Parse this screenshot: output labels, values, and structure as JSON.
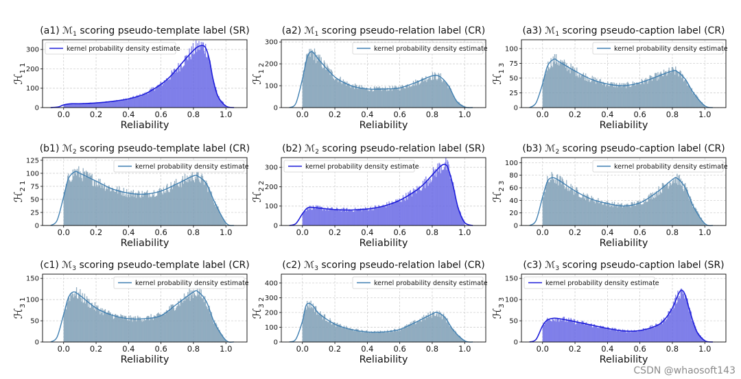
{
  "watermark": "CSDN @whaosoft143",
  "colors": {
    "sr_bar": "#6a6ae6",
    "sr_line": "#1c1cd9",
    "cr_bar": "#7f9fb6",
    "cr_line": "#3f7fb1",
    "grid": "#c8c8c8"
  },
  "chart_data": [
    {
      "id": "a1",
      "type": "histogram",
      "title": "(a1) ℳ1 scoring pseudo-template label (SR)",
      "title_prefix": "(a1) ",
      "model_sym": "ℳ",
      "model_sub": "1",
      "title_suffix": " scoring pseudo-template label (SR)",
      "mode": "SR",
      "ylabel_sym": "ℋ",
      "ylabel_sub": "1 1",
      "xlabel": "Reliability",
      "legend": "kernel probability density estimate",
      "legend_loc": "upper-left",
      "grid": true,
      "xlim": [
        -0.13,
        1.13
      ],
      "ylim": [
        0,
        350
      ],
      "xticks": [
        0.0,
        0.2,
        0.4,
        0.6,
        0.8,
        1.0
      ],
      "xtick_labels": [
        "0.0",
        "0.2",
        "0.4",
        "0.6",
        "0.8",
        "1.0"
      ],
      "yticks": [
        0,
        100,
        200,
        300
      ],
      "ytick_labels": [
        "0",
        "100",
        "200",
        "300"
      ],
      "density": {
        "x": [
          -0.08,
          -0.03,
          0.0,
          0.05,
          0.1,
          0.2,
          0.3,
          0.4,
          0.5,
          0.6,
          0.65,
          0.7,
          0.75,
          0.8,
          0.83,
          0.86,
          0.88,
          0.9,
          0.92,
          0.95,
          1.0,
          1.05
        ],
        "y": [
          0,
          4,
          14,
          20,
          20,
          24,
          32,
          45,
          70,
          120,
          155,
          200,
          250,
          295,
          315,
          320,
          300,
          240,
          150,
          60,
          8,
          0
        ]
      }
    },
    {
      "id": "a2",
      "type": "histogram",
      "title": "(a2) ℳ1 scoring pseudo-relation label (CR)",
      "title_prefix": "(a2) ",
      "model_sym": "ℳ",
      "model_sub": "1",
      "title_suffix": " scoring pseudo-relation label (CR)",
      "mode": "CR",
      "ylabel_sym": "ℋ",
      "ylabel_sub": "1 2",
      "xlabel": "Reliability",
      "legend": "kernel probability density estimate",
      "legend_loc": "upper-right",
      "grid": true,
      "xlim": [
        -0.13,
        1.13
      ],
      "ylim": [
        0,
        310
      ],
      "xticks": [
        0.0,
        0.2,
        0.4,
        0.6,
        0.8,
        1.0
      ],
      "xtick_labels": [
        "0.0",
        "0.2",
        "0.4",
        "0.6",
        "0.8",
        "1.0"
      ],
      "yticks": [
        0,
        100,
        200,
        300
      ],
      "ytick_labels": [
        "0",
        "100",
        "200",
        "300"
      ],
      "density": {
        "x": [
          -0.08,
          -0.04,
          0.0,
          0.03,
          0.06,
          0.1,
          0.2,
          0.3,
          0.4,
          0.5,
          0.6,
          0.7,
          0.8,
          0.85,
          0.9,
          0.95,
          1.0,
          1.05
        ],
        "y": [
          0,
          20,
          130,
          230,
          255,
          220,
          140,
          100,
          85,
          85,
          90,
          115,
          145,
          140,
          100,
          30,
          3,
          0
        ]
      }
    },
    {
      "id": "a3",
      "type": "histogram",
      "title": "(a3) ℳ1 scoring pseudo-caption label (CR)",
      "title_prefix": "(a3) ",
      "model_sym": "ℳ",
      "model_sub": "1",
      "title_suffix": " scoring pseudo-caption label (CR)",
      "mode": "CR",
      "ylabel_sym": "ℋ",
      "ylabel_sub": "1 3",
      "xlabel": "Reliability",
      "legend": "kernel probability density estimate",
      "legend_loc": "upper-right",
      "grid": true,
      "xlim": [
        -0.13,
        1.13
      ],
      "ylim": [
        0,
        115
      ],
      "xticks": [
        0.0,
        0.2,
        0.4,
        0.6,
        0.8,
        1.0
      ],
      "xtick_labels": [
        "0.0",
        "0.2",
        "0.4",
        "0.6",
        "0.8",
        "1.0"
      ],
      "yticks": [
        0,
        25,
        50,
        75,
        100
      ],
      "ytick_labels": [
        "0",
        "25",
        "50",
        "75",
        "100"
      ],
      "density": {
        "x": [
          -0.08,
          -0.04,
          0.0,
          0.03,
          0.07,
          0.1,
          0.2,
          0.3,
          0.4,
          0.5,
          0.6,
          0.7,
          0.8,
          0.83,
          0.88,
          0.93,
          1.0,
          1.05
        ],
        "y": [
          0,
          8,
          40,
          70,
          82,
          78,
          62,
          48,
          40,
          37,
          42,
          52,
          62,
          61,
          48,
          25,
          3,
          0
        ]
      }
    },
    {
      "id": "b1",
      "type": "histogram",
      "title": "(b1) ℳ2 scoring pseudo-template label (CR)",
      "title_prefix": "(b1) ",
      "model_sym": "ℳ",
      "model_sub": "2",
      "title_suffix": " scoring pseudo-template label (CR)",
      "mode": "CR",
      "ylabel_sym": "ℋ",
      "ylabel_sub": "2 1",
      "xlabel": "Reliability",
      "legend": "kernel probability density estimate",
      "legend_loc": "upper-right",
      "grid": true,
      "xlim": [
        -0.13,
        1.13
      ],
      "ylim": [
        0,
        130
      ],
      "xticks": [
        0.0,
        0.2,
        0.4,
        0.6,
        0.8,
        1.0
      ],
      "xtick_labels": [
        "0.0",
        "0.2",
        "0.4",
        "0.6",
        "0.8",
        "1.0"
      ],
      "yticks": [
        0,
        25,
        50,
        75,
        100,
        125
      ],
      "ytick_labels": [
        "0",
        "25",
        "50",
        "75",
        "100",
        "125"
      ],
      "density": {
        "x": [
          -0.08,
          -0.04,
          0.0,
          0.03,
          0.07,
          0.1,
          0.2,
          0.3,
          0.4,
          0.5,
          0.6,
          0.7,
          0.8,
          0.83,
          0.88,
          0.93,
          1.0,
          1.05
        ],
        "y": [
          0,
          10,
          55,
          90,
          103,
          100,
          85,
          70,
          62,
          60,
          66,
          80,
          95,
          94,
          80,
          45,
          5,
          0
        ]
      }
    },
    {
      "id": "b2",
      "type": "histogram",
      "title": "(b2) ℳ2 scoring pseudo-relation label (SR)",
      "title_prefix": "(b2) ",
      "model_sym": "ℳ",
      "model_sub": "2",
      "title_suffix": " scoring pseudo-relation label (SR)",
      "mode": "SR",
      "ylabel_sym": "ℋ",
      "ylabel_sub": "2 2",
      "xlabel": "Reliability",
      "legend": "kernel probability density estimate",
      "legend_loc": "upper-left",
      "grid": true,
      "xlim": [
        -0.13,
        1.13
      ],
      "ylim": [
        0,
        350
      ],
      "xticks": [
        0.0,
        0.2,
        0.4,
        0.6,
        0.8,
        1.0
      ],
      "xtick_labels": [
        "0.0",
        "0.2",
        "0.4",
        "0.6",
        "0.8",
        "1.0"
      ],
      "yticks": [
        0,
        100,
        200,
        300
      ],
      "ytick_labels": [
        "0",
        "100",
        "200",
        "300"
      ],
      "density": {
        "x": [
          -0.08,
          -0.04,
          0.0,
          0.03,
          0.06,
          0.1,
          0.2,
          0.3,
          0.4,
          0.5,
          0.6,
          0.7,
          0.75,
          0.8,
          0.85,
          0.88,
          0.9,
          0.93,
          0.96,
          1.0,
          1.05
        ],
        "y": [
          0,
          10,
          60,
          90,
          93,
          90,
          82,
          80,
          85,
          100,
          130,
          180,
          215,
          260,
          305,
          315,
          290,
          200,
          90,
          15,
          0
        ]
      }
    },
    {
      "id": "b3",
      "type": "histogram",
      "title": "(b3) ℳ2 scoring pseudo-caption label (CR)",
      "title_prefix": "(b3) ",
      "model_sym": "ℳ",
      "model_sub": "2",
      "title_suffix": " scoring pseudo-caption label (CR)",
      "mode": "CR",
      "ylabel_sym": "ℋ",
      "ylabel_sub": "2 3",
      "xlabel": "Reliability",
      "legend": "kernel probability density estimate",
      "legend_loc": "upper-right",
      "grid": true,
      "xlim": [
        -0.13,
        1.13
      ],
      "ylim": [
        0,
        108
      ],
      "xticks": [
        0.0,
        0.2,
        0.4,
        0.6,
        0.8,
        1.0
      ],
      "xtick_labels": [
        "0.0",
        "0.2",
        "0.4",
        "0.6",
        "0.8",
        "1.0"
      ],
      "yticks": [
        0,
        20,
        40,
        60,
        80,
        100
      ],
      "ytick_labels": [
        "0",
        "20",
        "40",
        "60",
        "80",
        "100"
      ],
      "density": {
        "x": [
          -0.08,
          -0.04,
          0.0,
          0.03,
          0.06,
          0.1,
          0.2,
          0.3,
          0.4,
          0.5,
          0.6,
          0.7,
          0.8,
          0.83,
          0.88,
          0.93,
          1.0,
          1.05
        ],
        "y": [
          0,
          8,
          45,
          70,
          76,
          72,
          55,
          42,
          35,
          31,
          36,
          52,
          73,
          75,
          60,
          30,
          3,
          0
        ]
      }
    },
    {
      "id": "c1",
      "type": "histogram",
      "title": "(c1) ℳ3 scoring pseudo-template label (CR)",
      "title_prefix": "(c1) ",
      "model_sym": "ℳ",
      "model_sub": "3",
      "title_suffix": " scoring pseudo-template label (CR)",
      "mode": "CR",
      "ylabel_sym": "ℋ",
      "ylabel_sub": "3 1",
      "xlabel": "Reliability",
      "legend": "kernel probability density estimate",
      "legend_loc": "upper-right",
      "grid": true,
      "xlim": [
        -0.13,
        1.13
      ],
      "ylim": [
        0,
        160
      ],
      "xticks": [
        0.0,
        0.2,
        0.4,
        0.6,
        0.8,
        1.0
      ],
      "xtick_labels": [
        "0.0",
        "0.2",
        "0.4",
        "0.6",
        "0.8",
        "1.0"
      ],
      "yticks": [
        0,
        50,
        100,
        150
      ],
      "ytick_labels": [
        "0",
        "50",
        "100",
        "150"
      ],
      "density": {
        "x": [
          -0.08,
          -0.04,
          0.0,
          0.03,
          0.06,
          0.1,
          0.2,
          0.3,
          0.4,
          0.5,
          0.6,
          0.7,
          0.8,
          0.83,
          0.88,
          0.93,
          1.0,
          1.05
        ],
        "y": [
          0,
          12,
          65,
          105,
          118,
          110,
          80,
          63,
          55,
          55,
          62,
          90,
          118,
          118,
          95,
          45,
          4,
          0
        ]
      }
    },
    {
      "id": "c2",
      "type": "histogram",
      "title": "(c2) ℳ3 scoring pseudo-relation label (CR)",
      "title_prefix": "(c2) ",
      "model_sym": "ℳ",
      "model_sub": "3",
      "title_suffix": " scoring pseudo-relation label (CR)",
      "mode": "CR",
      "ylabel_sym": "ℋ",
      "ylabel_sub": "3 2",
      "xlabel": "Reliability",
      "legend": "kernel probability density estimate",
      "legend_loc": "upper-right",
      "grid": true,
      "xlim": [
        -0.13,
        1.13
      ],
      "ylim": [
        0,
        460
      ],
      "xticks": [
        0.0,
        0.2,
        0.4,
        0.6,
        0.8,
        1.0
      ],
      "xtick_labels": [
        "0.0",
        "0.2",
        "0.4",
        "0.6",
        "0.8",
        "1.0"
      ],
      "yticks": [
        0,
        100,
        200,
        300,
        400
      ],
      "ytick_labels": [
        "0",
        "100",
        "200",
        "300",
        "400"
      ],
      "density": {
        "x": [
          -0.08,
          -0.04,
          0.0,
          0.02,
          0.04,
          0.07,
          0.1,
          0.2,
          0.3,
          0.4,
          0.5,
          0.6,
          0.7,
          0.8,
          0.83,
          0.88,
          0.93,
          1.0,
          1.05
        ],
        "y": [
          0,
          20,
          140,
          240,
          262,
          240,
          195,
          120,
          85,
          68,
          68,
          85,
          135,
          190,
          200,
          165,
          80,
          8,
          0
        ]
      }
    },
    {
      "id": "c3",
      "type": "histogram",
      "title": "(c3) ℳ3 scoring pseudo-caption label (SR)",
      "title_prefix": "(c3) ",
      "model_sym": "ℳ",
      "model_sub": "3",
      "title_suffix": " scoring pseudo-caption label (SR)",
      "mode": "SR",
      "ylabel_sym": "ℋ",
      "ylabel_sub": "3 3",
      "xlabel": "Reliability",
      "legend": "kernel probability density estimate",
      "legend_loc": "upper-left",
      "grid": true,
      "xlim": [
        -0.13,
        1.13
      ],
      "ylim": [
        0,
        160
      ],
      "xticks": [
        0.0,
        0.2,
        0.4,
        0.6,
        0.8,
        1.0
      ],
      "xtick_labels": [
        "0.0",
        "0.2",
        "0.4",
        "0.6",
        "0.8",
        "1.0"
      ],
      "yticks": [
        0,
        50,
        100,
        150
      ],
      "ytick_labels": [
        "0",
        "50",
        "100",
        "150"
      ],
      "density": {
        "x": [
          -0.08,
          -0.04,
          0.0,
          0.03,
          0.07,
          0.1,
          0.2,
          0.3,
          0.4,
          0.5,
          0.6,
          0.7,
          0.75,
          0.8,
          0.84,
          0.86,
          0.88,
          0.91,
          0.95,
          1.0,
          1.05
        ],
        "y": [
          0,
          6,
          38,
          52,
          56,
          55,
          48,
          40,
          32,
          26,
          27,
          38,
          52,
          80,
          115,
          122,
          110,
          70,
          25,
          3,
          0
        ]
      }
    }
  ]
}
